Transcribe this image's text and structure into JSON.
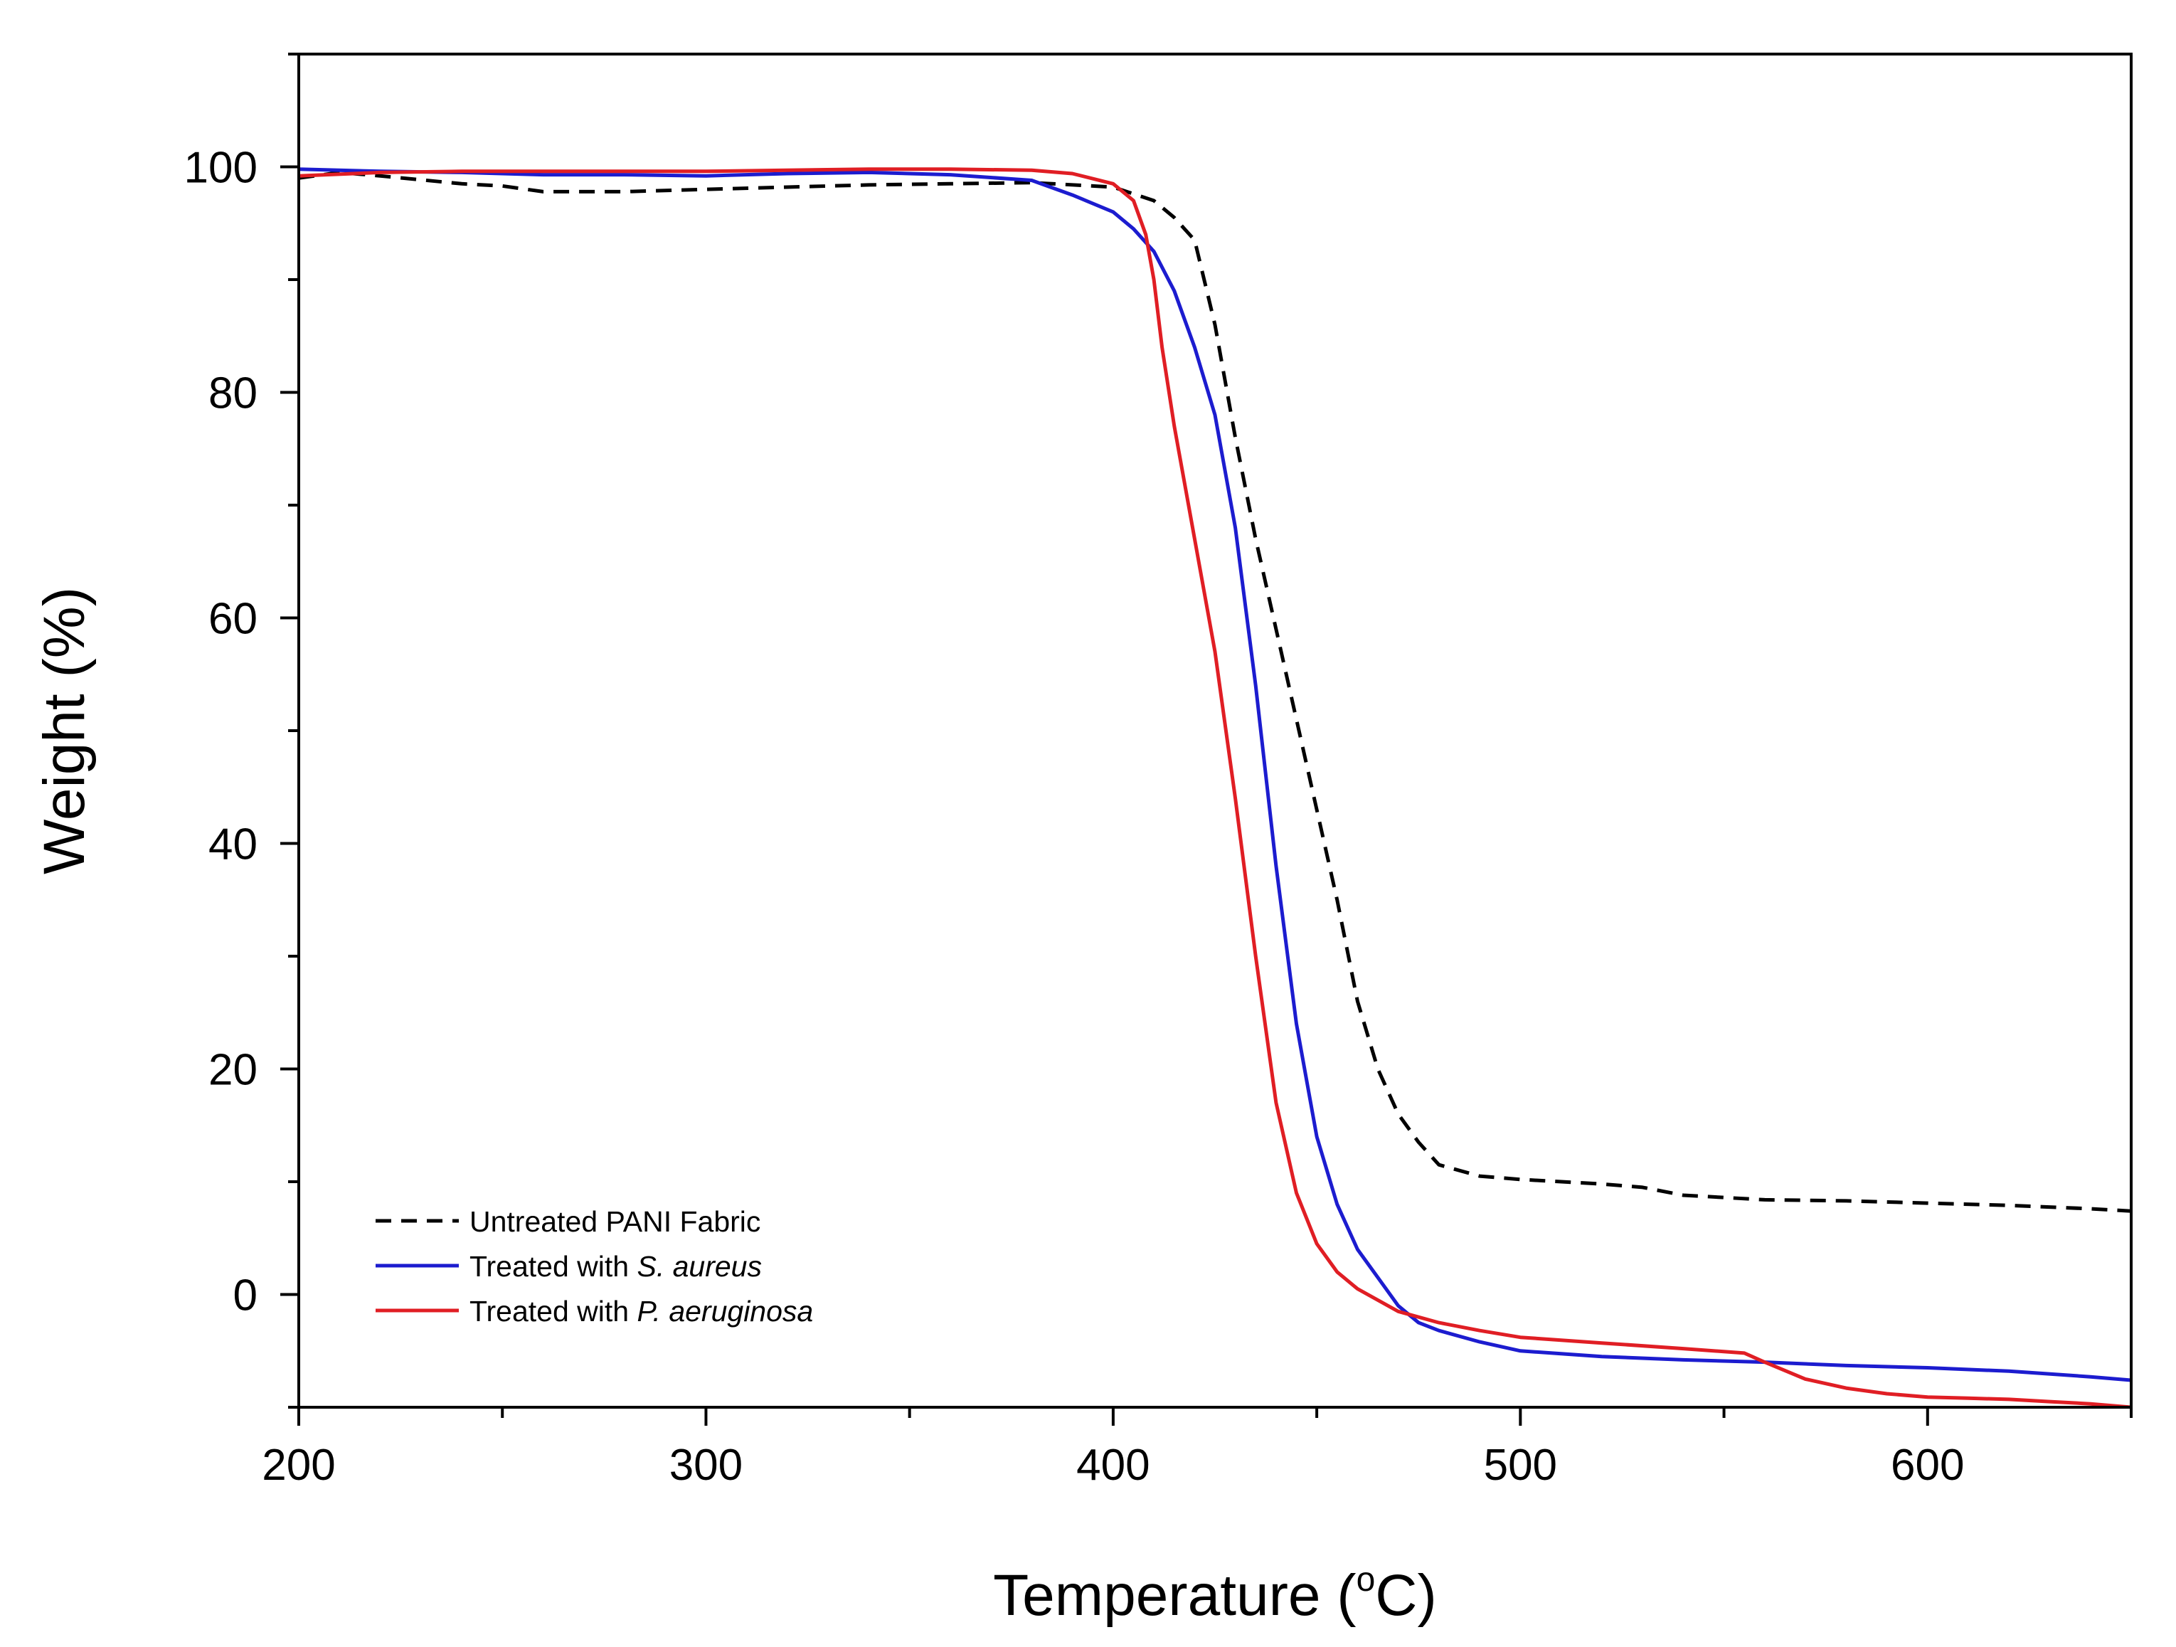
{
  "chart_data": {
    "type": "line",
    "title": "",
    "xlabel": "Temperature (",
    "xlabel_superscript": "o",
    "xlabel_suffix": "C)",
    "ylabel": "Weight (%)",
    "xlim": [
      200,
      650
    ],
    "ylim": [
      -10,
      110
    ],
    "xticks": [
      200,
      300,
      400,
      500,
      600
    ],
    "yticks": [
      0,
      20,
      40,
      60,
      80,
      100
    ],
    "x_minor_step": 50,
    "y_minor_step": 10,
    "grid": false,
    "legend_position": "bottom-left",
    "series": [
      {
        "name": "Untreated PANI Fabric",
        "legend_prefix": "Untreated PANI Fabric",
        "legend_italic": "",
        "color": "#000000",
        "dash": "dashed",
        "x": [
          200,
          210,
          220,
          240,
          250,
          260,
          280,
          300,
          320,
          340,
          360,
          380,
          400,
          410,
          415,
          420,
          425,
          430,
          435,
          440,
          445,
          450,
          455,
          460,
          465,
          470,
          475,
          480,
          485,
          490,
          500,
          520,
          530,
          540,
          560,
          580,
          600,
          620,
          640,
          650
        ],
        "y": [
          99,
          99.5,
          99.2,
          98.5,
          98.3,
          97.8,
          97.8,
          98,
          98.2,
          98.4,
          98.5,
          98.6,
          98.2,
          97,
          95.5,
          93.5,
          86,
          76,
          67,
          59,
          51,
          43,
          35,
          26,
          20,
          16,
          13.5,
          11.5,
          11,
          10.5,
          10.2,
          9.8,
          9.5,
          8.8,
          8.4,
          8.3,
          8.1,
          7.9,
          7.6,
          7.4
        ]
      },
      {
        "name": "Treated with S. aureus",
        "legend_prefix": "Treated with ",
        "legend_italic": "S. aureus",
        "color": "#1c1ccf",
        "dash": "solid",
        "x": [
          200,
          220,
          240,
          260,
          280,
          300,
          320,
          340,
          360,
          380,
          390,
          400,
          405,
          410,
          415,
          420,
          425,
          430,
          435,
          440,
          445,
          450,
          455,
          460,
          465,
          470,
          475,
          480,
          490,
          500,
          520,
          540,
          560,
          580,
          600,
          620,
          640,
          650
        ],
        "y": [
          99.8,
          99.6,
          99.5,
          99.3,
          99.3,
          99.2,
          99.4,
          99.5,
          99.3,
          98.8,
          97.5,
          96,
          94.5,
          92.5,
          89,
          84,
          78,
          68,
          54,
          38,
          24,
          14,
          8,
          4,
          1.5,
          -1,
          -2.5,
          -3.2,
          -4.2,
          -5,
          -5.5,
          -5.8,
          -6,
          -6.3,
          -6.5,
          -6.8,
          -7.3,
          -7.6
        ]
      },
      {
        "name": "Treated with P. aeruginosa",
        "legend_prefix": "Treated with ",
        "legend_italic": "P. aeruginosa",
        "color": "#e01e24",
        "dash": "solid",
        "x": [
          200,
          220,
          240,
          260,
          280,
          300,
          320,
          340,
          360,
          380,
          390,
          400,
          405,
          408,
          410,
          412,
          415,
          420,
          425,
          430,
          435,
          440,
          445,
          450,
          455,
          460,
          465,
          470,
          480,
          490,
          500,
          520,
          540,
          555,
          560,
          570,
          580,
          590,
          600,
          610,
          620,
          630,
          640,
          650
        ],
        "y": [
          99.2,
          99.5,
          99.6,
          99.6,
          99.6,
          99.6,
          99.7,
          99.8,
          99.8,
          99.7,
          99.4,
          98.5,
          97,
          94,
          90,
          84,
          77,
          67,
          57,
          44,
          30,
          17,
          9,
          4.5,
          2,
          0.5,
          -0.5,
          -1.5,
          -2.5,
          -3.2,
          -3.8,
          -4.3,
          -4.8,
          -5.2,
          -6,
          -7.5,
          -8.3,
          -8.8,
          -9.1,
          -9.2,
          -9.3,
          -9.5,
          -9.7,
          -10
        ]
      }
    ]
  }
}
